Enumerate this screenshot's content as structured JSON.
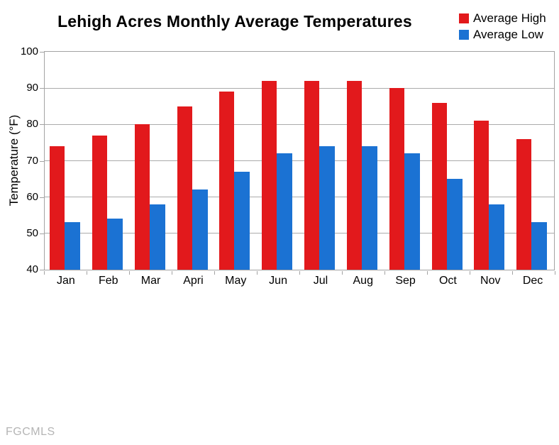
{
  "chart_data": {
    "type": "bar",
    "title": "Lehigh Acres Monthly Average Temperatures",
    "xlabel": "",
    "ylabel": "Temperature (°F)",
    "categories": [
      "Jan",
      "Feb",
      "Mar",
      "Apri",
      "May",
      "Jun",
      "Jul",
      "Aug",
      "Sep",
      "Oct",
      "Nov",
      "Dec"
    ],
    "series": [
      {
        "name": "Average High",
        "color": "#e2191c",
        "values": [
          74,
          77,
          80,
          85,
          89,
          92,
          92,
          92,
          90,
          86,
          81,
          76
        ]
      },
      {
        "name": "Average Low",
        "color": "#1b72d3",
        "values": [
          53,
          54,
          58,
          62,
          67,
          72,
          74,
          74,
          72,
          65,
          58,
          53
        ]
      }
    ],
    "ylim": [
      40,
      100
    ],
    "y_ticks": [
      100,
      90,
      80,
      70,
      60,
      50,
      40
    ],
    "grid": "horizontal",
    "legend_position": "top-right"
  },
  "watermark": "FGCMLS",
  "colors": {
    "grid": "#ababab",
    "axis": "#a3a3a3",
    "background": "#ffffff",
    "text": "#000000",
    "watermark": "#b5b5b5"
  }
}
